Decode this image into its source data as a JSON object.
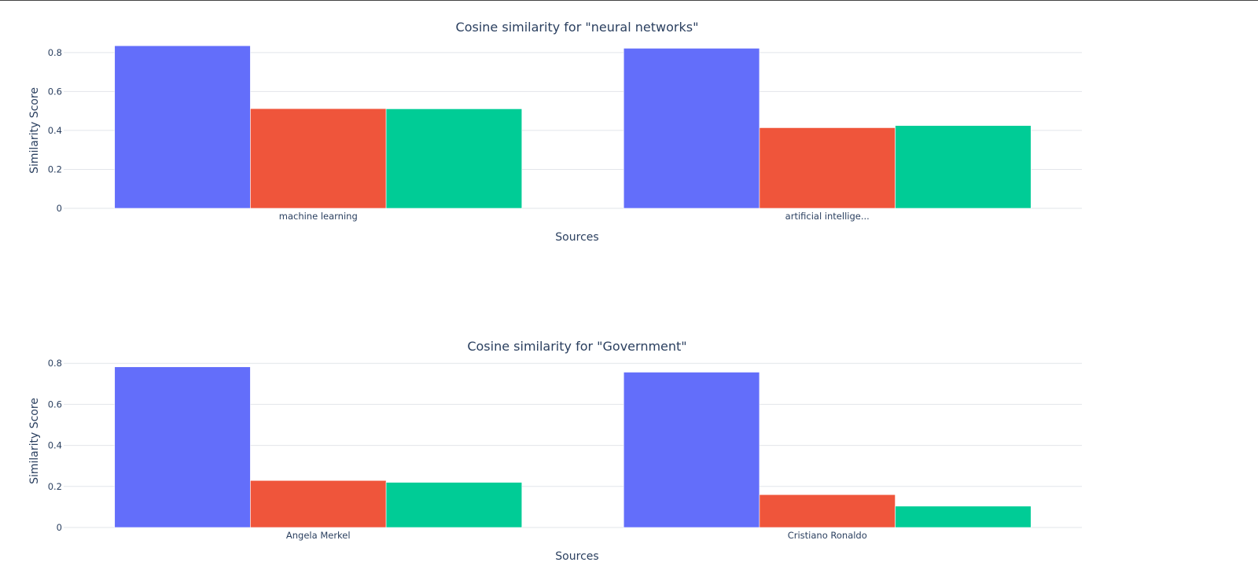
{
  "chart_data": [
    {
      "type": "bar",
      "title": "Cosine similarity for \"neural networks\"",
      "xlabel": "Sources",
      "ylabel": "Similarity Score",
      "ylim": [
        0,
        0.86
      ],
      "yticks": [
        0,
        0.2,
        0.4,
        0.6,
        0.8
      ],
      "ytick_labels": [
        "0",
        "0.2",
        "0.4",
        "0.6",
        "0.8"
      ],
      "categories": [
        "machine learning",
        "artificial intellige..."
      ],
      "series": [
        {
          "color": "#636efa",
          "values": [
            0.835,
            0.822
          ]
        },
        {
          "color": "#ef553b",
          "values": [
            0.512,
            0.414
          ]
        },
        {
          "color": "#00cc96",
          "values": [
            0.511,
            0.425
          ]
        }
      ],
      "grid": true,
      "legend": "none"
    },
    {
      "type": "bar",
      "title": "Cosine similarity for \"Government\"",
      "xlabel": "Sources",
      "ylabel": "Similarity Score",
      "ylim": [
        0,
        0.82
      ],
      "yticks": [
        0,
        0.2,
        0.4,
        0.6,
        0.8
      ],
      "ytick_labels": [
        "0",
        "0.2",
        "0.4",
        "0.6",
        "0.8"
      ],
      "categories": [
        "Angela Merkel",
        "Cristiano Ronaldo"
      ],
      "series": [
        {
          "color": "#636efa",
          "values": [
            0.783,
            0.757
          ]
        },
        {
          "color": "#ef553b",
          "values": [
            0.229,
            0.16
          ]
        },
        {
          "color": "#00cc96",
          "values": [
            0.22,
            0.104
          ]
        }
      ],
      "grid": true,
      "legend": "none"
    }
  ]
}
